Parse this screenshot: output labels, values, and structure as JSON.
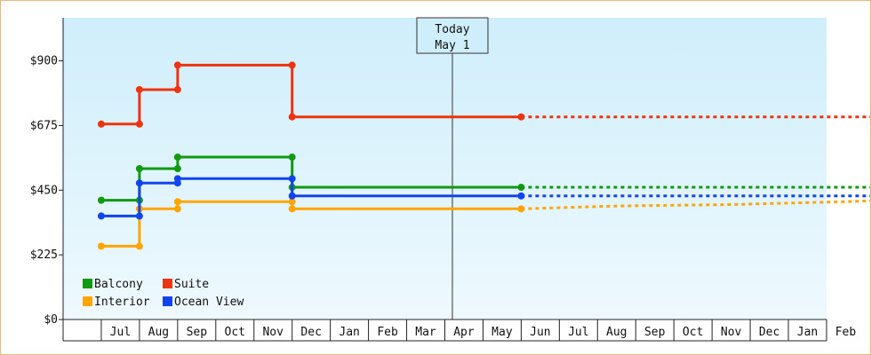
{
  "chart_data": {
    "type": "line",
    "step": true,
    "y_ticks": [
      0,
      225,
      450,
      675,
      900
    ],
    "y_tick_labels": [
      "$0",
      "$225",
      "$450",
      "$675",
      "$900"
    ],
    "ylim": [
      0,
      1050
    ],
    "x_months": [
      "Jul",
      "Aug",
      "Sep",
      "Oct",
      "Nov",
      "Dec",
      "Jan",
      "Feb",
      "Mar",
      "Apr",
      "May",
      "Jun",
      "Jul",
      "Aug",
      "Sep",
      "Oct",
      "Nov",
      "Dec",
      "Jan",
      "Feb"
    ],
    "grid": false,
    "legend_position": "bottom-left",
    "today": {
      "line1": "Today",
      "line2": "May 1"
    },
    "series": [
      {
        "name": "Balcony",
        "color": "#119911",
        "values": [
          [
            -0.5,
            415
          ],
          [
            0.5,
            415
          ],
          [
            0.5,
            525
          ],
          [
            1.5,
            525
          ],
          [
            1.5,
            565
          ],
          [
            4.5,
            565
          ],
          [
            4.5,
            460
          ],
          [
            10.5,
            460
          ]
        ],
        "forecast": [
          [
            10.5,
            460
          ],
          [
            21,
            460
          ]
        ]
      },
      {
        "name": "Suite",
        "color": "#ee3311",
        "values": [
          [
            -0.5,
            680
          ],
          [
            0.5,
            680
          ],
          [
            0.5,
            800
          ],
          [
            1.5,
            800
          ],
          [
            1.5,
            885
          ],
          [
            4.5,
            885
          ],
          [
            4.5,
            705
          ],
          [
            10.5,
            705
          ]
        ],
        "forecast": [
          [
            10.5,
            705
          ],
          [
            21,
            705
          ]
        ]
      },
      {
        "name": "Interior",
        "color": "#ffa500",
        "values": [
          [
            -0.5,
            255
          ],
          [
            0.5,
            255
          ],
          [
            0.5,
            385
          ],
          [
            1.5,
            385
          ],
          [
            1.5,
            410
          ],
          [
            4.5,
            410
          ],
          [
            4.5,
            385
          ],
          [
            10.5,
            385
          ]
        ],
        "forecast": [
          [
            10.5,
            385
          ],
          [
            13,
            395
          ],
          [
            16,
            400
          ],
          [
            19,
            410
          ],
          [
            21,
            418
          ]
        ]
      },
      {
        "name": "Ocean View",
        "color": "#1144ee",
        "values": [
          [
            -0.5,
            360
          ],
          [
            0.5,
            360
          ],
          [
            0.5,
            475
          ],
          [
            1.5,
            475
          ],
          [
            1.5,
            490
          ],
          [
            4.5,
            490
          ],
          [
            4.5,
            430
          ],
          [
            10.5,
            430
          ]
        ],
        "forecast": [
          [
            10.5,
            430
          ],
          [
            21,
            430
          ]
        ]
      }
    ],
    "legend_layout": [
      [
        "Balcony",
        "Suite"
      ],
      [
        "Interior",
        "Ocean View"
      ]
    ]
  }
}
